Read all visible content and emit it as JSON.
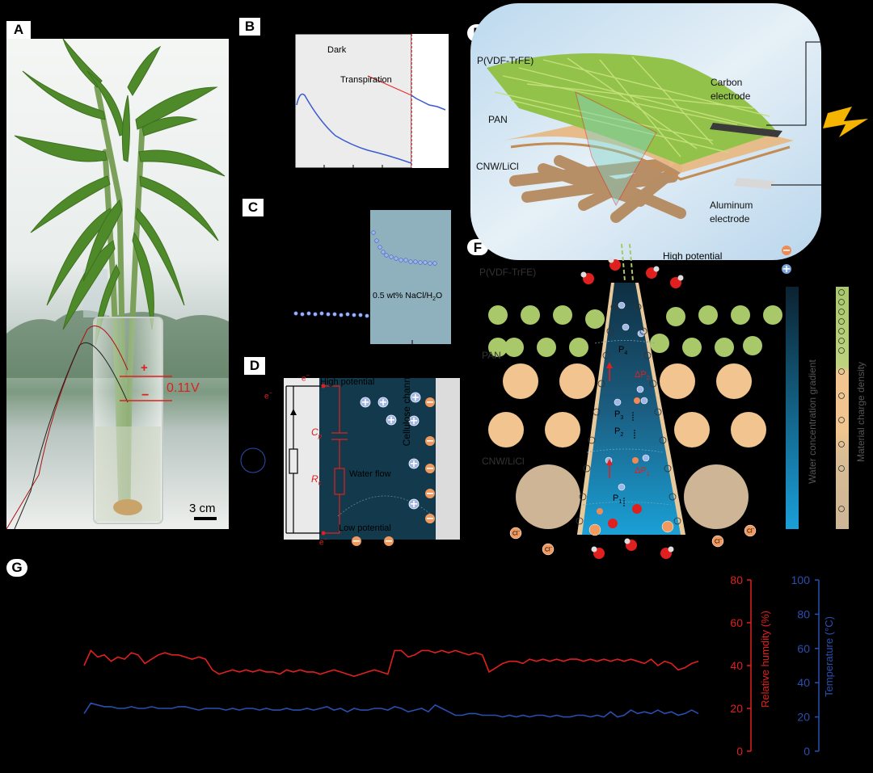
{
  "panels": {
    "A": "A",
    "B": "B",
    "C": "C",
    "D": "D",
    "E": "E",
    "F": "F",
    "G": "G"
  },
  "panel_a": {
    "plus": "+",
    "minus": "−",
    "voltage": "0.11V",
    "scale": "3 cm"
  },
  "panel_b": {
    "dark": "Dark",
    "transpiration": "Transpiration"
  },
  "panel_c": {
    "solution_prefix": "0.5 wt% NaCl/H",
    "solution_sub": "2",
    "solution_suffix": "O"
  },
  "panel_d": {
    "electron": "e",
    "electron_sup": "−",
    "high_potential": "High potential",
    "low_potential": "Low potential",
    "cp": "C",
    "cp_sub": "p",
    "rc": "R",
    "rc_sub": "c",
    "water_flow": "Water flow",
    "channel": "Cellulose channel"
  },
  "panel_e": {
    "layer1": "P(VDF-TrFE)",
    "layer2": "PAN",
    "layer3": "CNW/LiCl",
    "carbon1": "Carbon",
    "carbon2": "electrode",
    "aluminum1": "Aluminum",
    "aluminum2": "electrode"
  },
  "panel_f": {
    "high_potential": "High potential",
    "layer1": "P(VDF-TrFE)",
    "layer2": "PAN",
    "layer3": "CNW/LiCl",
    "water_gradient": "Water concentration gradient",
    "charge_density": "Material charge density",
    "ion": "Cl",
    "ion_sup": "−",
    "p1": "P",
    "p1_sub": "1",
    "p2": "P",
    "p2_sub": "2",
    "p3": "P",
    "p3_sub": "3",
    "p4": "P",
    "p4_sub": "4",
    "dp1": "ΔP",
    "dp1_sub": "1",
    "dp2": "ΔP",
    "dp2_sub": "2"
  },
  "chart_data": {
    "type": "line",
    "title": "",
    "xlabel": "",
    "y_left": {
      "label": "Relative humdity (%)",
      "ticks": [
        "0",
        "20",
        "40",
        "60",
        "80"
      ],
      "ylim": [
        0,
        80
      ],
      "color": "#e0201e"
    },
    "y_right": {
      "label": "Temperature (°C)",
      "ticks": [
        "0",
        "20",
        "40",
        "60",
        "80",
        "100"
      ],
      "ylim": [
        0,
        100
      ],
      "color": "#2a4fb0"
    },
    "series": [
      {
        "axis": "left",
        "color": "#e0201e",
        "values": [
          40,
          47,
          44,
          45,
          42,
          44,
          43,
          46,
          45,
          41,
          43,
          45,
          46,
          45,
          45,
          44,
          43,
          44,
          43,
          38,
          36,
          37,
          38,
          37,
          38,
          37,
          38,
          37,
          37,
          36,
          38,
          37,
          38,
          37,
          37,
          36,
          37,
          38,
          37,
          36,
          35,
          36,
          37,
          38,
          37,
          36,
          47,
          47,
          44,
          45,
          47,
          47,
          46,
          47,
          46,
          47,
          46,
          45,
          46,
          45,
          37,
          39,
          41,
          42,
          42,
          41,
          43,
          42,
          43,
          42,
          43,
          42,
          43,
          43,
          42,
          43,
          42,
          43,
          42,
          43,
          42,
          43,
          42,
          41,
          43,
          40,
          42,
          41,
          38,
          39,
          41,
          42
        ]
      },
      {
        "axis": "right",
        "color": "#2a4fb0",
        "values": [
          22,
          28,
          27,
          26,
          26,
          25,
          25,
          26,
          25,
          25,
          26,
          25,
          25,
          25,
          26,
          26,
          25,
          24,
          25,
          25,
          25,
          24,
          25,
          24,
          25,
          25,
          24,
          25,
          24,
          24,
          25,
          24,
          24,
          25,
          24,
          25,
          26,
          24,
          25,
          23,
          25,
          24,
          24,
          25,
          25,
          24,
          26,
          25,
          23,
          24,
          25,
          23,
          27,
          25,
          23,
          21,
          21,
          22,
          22,
          21,
          21,
          21,
          20,
          21,
          20,
          21,
          20,
          21,
          21,
          20,
          21,
          20,
          20,
          21,
          21,
          20,
          21,
          20,
          23,
          20,
          21,
          24,
          22,
          23,
          22,
          24,
          22,
          23,
          21,
          22,
          24,
          22
        ]
      }
    ]
  }
}
